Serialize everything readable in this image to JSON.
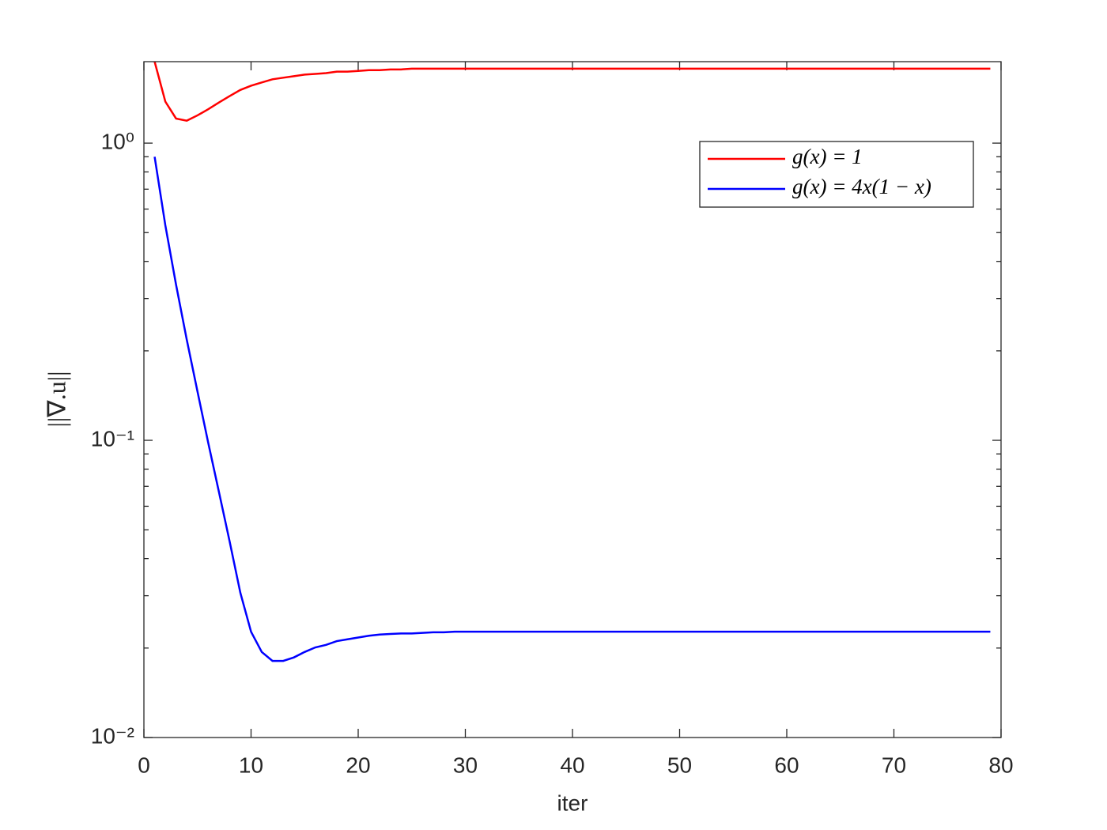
{
  "chart_data": {
    "type": "line",
    "xlabel": "iter",
    "ylabel": "||∇.u||",
    "x": [
      1,
      2,
      3,
      4,
      5,
      6,
      7,
      8,
      9,
      10,
      11,
      12,
      13,
      14,
      15,
      16,
      17,
      18,
      19,
      20,
      21,
      22,
      23,
      24,
      25,
      26,
      27,
      28,
      29,
      30,
      31,
      32,
      33,
      34,
      35,
      36,
      37,
      38,
      39,
      40,
      41,
      42,
      43,
      44,
      45,
      46,
      47,
      48,
      49,
      50,
      51,
      52,
      53,
      54,
      55,
      56,
      57,
      58,
      59,
      60,
      61,
      62,
      63,
      64,
      65,
      66,
      67,
      68,
      69,
      70,
      71,
      72,
      73,
      74,
      75,
      76,
      77,
      78,
      79
    ],
    "series": [
      {
        "name": "g(x) = 1",
        "color": "#ff0000",
        "values": [
          1.88,
          1.38,
          1.21,
          1.19,
          1.24,
          1.3,
          1.37,
          1.44,
          1.51,
          1.56,
          1.6,
          1.64,
          1.66,
          1.68,
          1.7,
          1.71,
          1.72,
          1.74,
          1.74,
          1.75,
          1.76,
          1.76,
          1.77,
          1.77,
          1.78,
          1.78,
          1.78,
          1.78,
          1.78,
          1.78,
          1.78,
          1.78,
          1.78,
          1.78,
          1.78,
          1.78,
          1.78,
          1.78,
          1.78,
          1.78,
          1.78,
          1.78,
          1.78,
          1.78,
          1.78,
          1.78,
          1.78,
          1.78,
          1.78,
          1.78,
          1.78,
          1.78,
          1.78,
          1.78,
          1.78,
          1.78,
          1.78,
          1.78,
          1.78,
          1.78,
          1.78,
          1.78,
          1.78,
          1.78,
          1.78,
          1.78,
          1.78,
          1.78,
          1.78,
          1.78,
          1.78,
          1.78,
          1.78,
          1.78,
          1.78,
          1.78,
          1.78,
          1.78,
          1.78
        ]
      },
      {
        "name": "g(x) = 4x(1 − x)",
        "color": "#0000ff",
        "values": [
          0.9,
          0.529,
          0.334,
          0.218,
          0.146,
          0.0982,
          0.0671,
          0.0457,
          0.0307,
          0.0227,
          0.0194,
          0.0181,
          0.0181,
          0.0186,
          0.0194,
          0.0201,
          0.0205,
          0.0211,
          0.0214,
          0.0217,
          0.022,
          0.0222,
          0.0223,
          0.0224,
          0.0224,
          0.0225,
          0.0226,
          0.0226,
          0.0227,
          0.0227,
          0.0227,
          0.0227,
          0.0227,
          0.0227,
          0.0227,
          0.0227,
          0.0227,
          0.0227,
          0.0227,
          0.0227,
          0.0227,
          0.0227,
          0.0227,
          0.0227,
          0.0227,
          0.0227,
          0.0227,
          0.0227,
          0.0227,
          0.0227,
          0.0227,
          0.0227,
          0.0227,
          0.0227,
          0.0227,
          0.0227,
          0.0227,
          0.0227,
          0.0227,
          0.0227,
          0.0227,
          0.0227,
          0.0227,
          0.0227,
          0.0227,
          0.0227,
          0.0227,
          0.0227,
          0.0227,
          0.0227,
          0.0227,
          0.0227,
          0.0227,
          0.0227,
          0.0227,
          0.0227,
          0.0227,
          0.0227,
          0.0227
        ]
      }
    ],
    "xlim": [
      0,
      80
    ],
    "xticks": [
      0,
      10,
      20,
      30,
      40,
      50,
      60,
      70,
      80
    ],
    "ylim": [
      0.01,
      1.88
    ],
    "ylog": true,
    "yticks": [
      {
        "value": 0.01,
        "label": "10⁻²"
      },
      {
        "value": 0.1,
        "label": "10⁻¹"
      },
      {
        "value": 1,
        "label": "10⁰"
      }
    ],
    "yminorticks": [
      0.02,
      0.03,
      0.04,
      0.05,
      0.06,
      0.07,
      0.08,
      0.09,
      0.2,
      0.3,
      0.4,
      0.5,
      0.6,
      0.7,
      0.8,
      0.9
    ],
    "grid": false,
    "legend": "northeast"
  }
}
